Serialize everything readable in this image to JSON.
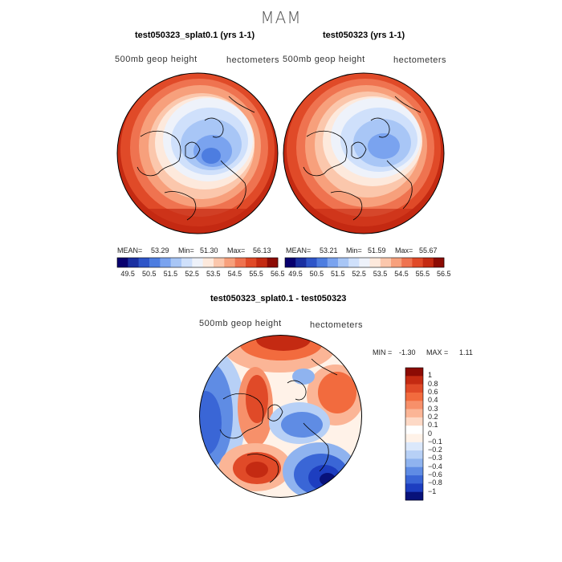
{
  "suptitle": "MAM",
  "panels": [
    {
      "title": "test050323_splat0.1 (yrs 1-1)",
      "field_label": "500mb geop height",
      "units_label": "hectometers",
      "stats": {
        "mean_label": "MEAN=",
        "mean": "53.29",
        "min_label": "Min=",
        "min": "51.30",
        "max_label": "Max=",
        "max": "56.13"
      }
    },
    {
      "title": "test050323 (yrs 1-1)",
      "field_label": "500mb geop height",
      "units_label": "hectometers",
      "stats": {
        "mean_label": "MEAN=",
        "mean": "53.21",
        "min_label": "Min=",
        "min": "51.59",
        "max_label": "Max=",
        "max": "55.67"
      }
    },
    {
      "title": "test050323_splat0.1 - test050323",
      "field_label": "500mb geop height",
      "units_label": "hectometers",
      "stats": {
        "min_label": "MIN =",
        "min": "-1.30",
        "max_label": "MAX =",
        "max": "1.11"
      }
    }
  ],
  "colorbar_top": {
    "tick_labels": [
      "49.5",
      "50.5",
      "51.5",
      "52.5",
      "53.5",
      "54.5",
      "55.5",
      "56.5"
    ],
    "colors": [
      "#08006e",
      "#1a2fa0",
      "#2e55c8",
      "#4d7de0",
      "#7aa3ef",
      "#a8c6f6",
      "#cfe0fb",
      "#eef2fa",
      "#fde9dc",
      "#fbc7ac",
      "#f7a07c",
      "#ef7350",
      "#e04a28",
      "#c42a12",
      "#8c0b04"
    ]
  },
  "colorbar_diff": {
    "tick_labels": [
      "1",
      "0.8",
      "0.6",
      "0.4",
      "0.3",
      "0.2",
      "0.1",
      "0",
      "−0.1",
      "−0.2",
      "−0.3",
      "−0.4",
      "−0.6",
      "−0.8",
      "−1"
    ],
    "colors": [
      "#8c0b04",
      "#c42a12",
      "#e04a28",
      "#f26b3e",
      "#f7906a",
      "#fbb596",
      "#fdd9c6",
      "#fff2e8",
      "#dbe8fb",
      "#b7d0f6",
      "#8fb3ef",
      "#5f8ce4",
      "#3a66d6",
      "#1d3ec0",
      "#08127a"
    ]
  },
  "chart_data": [
    {
      "type": "heatmap",
      "projection": "north-polar-stereographic",
      "title": "test050323_splat0.1 (yrs 1-1)",
      "variable": "500mb geop height",
      "units": "hectometers",
      "contour_levels": [
        49.5,
        50.0,
        50.5,
        51.0,
        51.5,
        52.0,
        52.5,
        53.0,
        53.5,
        54.0,
        54.5,
        55.0,
        55.5,
        56.0,
        56.5
      ],
      "mean": 53.29,
      "min": 51.3,
      "max": 56.13
    },
    {
      "type": "heatmap",
      "projection": "north-polar-stereographic",
      "title": "test050323 (yrs 1-1)",
      "variable": "500mb geop height",
      "units": "hectometers",
      "contour_levels": [
        49.5,
        50.0,
        50.5,
        51.0,
        51.5,
        52.0,
        52.5,
        53.0,
        53.5,
        54.0,
        54.5,
        55.0,
        55.5,
        56.0,
        56.5
      ],
      "mean": 53.21,
      "min": 51.59,
      "max": 55.67
    },
    {
      "type": "heatmap",
      "projection": "north-polar-stereographic",
      "title": "test050323_splat0.1 - test050323",
      "variable": "500mb geop height",
      "units": "hectometers",
      "contour_levels": [
        -1,
        -0.8,
        -0.6,
        -0.4,
        -0.3,
        -0.2,
        -0.1,
        0,
        0.1,
        0.2,
        0.3,
        0.4,
        0.6,
        0.8,
        1
      ],
      "min": -1.3,
      "max": 1.11
    }
  ]
}
